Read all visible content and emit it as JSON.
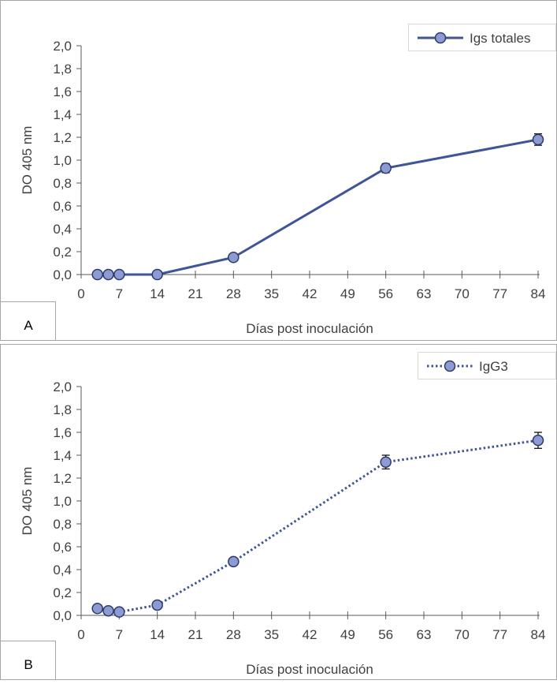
{
  "chart_data": [
    {
      "type": "line",
      "panel_label": "A",
      "x": [
        3,
        5,
        7,
        14,
        28,
        56,
        84
      ],
      "series": [
        {
          "name": "Igs totales",
          "values": [
            0.0,
            0.0,
            0.0,
            0.0,
            0.15,
            0.93,
            1.18
          ],
          "errors": [
            0.0,
            0.0,
            0.0,
            0.0,
            0.01,
            0.04,
            0.05
          ],
          "line_style": "solid"
        }
      ],
      "xlabel": "Días post inoculación",
      "ylabel": "DO 405 nm",
      "xlim": [
        0,
        84
      ],
      "ylim": [
        0,
        2.0
      ],
      "xticks": [
        "0",
        "7",
        "14",
        "21",
        "28",
        "35",
        "42",
        "49",
        "56",
        "63",
        "70",
        "77",
        "84"
      ],
      "yticks": [
        "0,0",
        "0,2",
        "0,4",
        "0,6",
        "0,8",
        "1,0",
        "1,2",
        "1,4",
        "1,6",
        "1,8",
        "2,0"
      ],
      "legend_position": "top-right",
      "grid": false
    },
    {
      "type": "line",
      "panel_label": "B",
      "x": [
        3,
        5,
        7,
        14,
        28,
        56,
        84
      ],
      "series": [
        {
          "name": "IgG3",
          "values": [
            0.06,
            0.04,
            0.03,
            0.09,
            0.47,
            1.34,
            1.53
          ],
          "errors": [
            0.0,
            0.0,
            0.0,
            0.0,
            0.01,
            0.06,
            0.07
          ],
          "line_style": "dotted"
        }
      ],
      "xlabel": "Días post inoculación",
      "ylabel": "DO 405 nm",
      "xlim": [
        0,
        84
      ],
      "ylim": [
        0,
        2.0
      ],
      "xticks": [
        "0",
        "7",
        "14",
        "21",
        "28",
        "35",
        "42",
        "49",
        "56",
        "63",
        "70",
        "77",
        "84"
      ],
      "yticks": [
        "0,0",
        "0,2",
        "0,4",
        "0,6",
        "0,8",
        "1,0",
        "1,2",
        "1,4",
        "1,6",
        "1,8",
        "2,0"
      ],
      "legend_position": "top-right",
      "grid": false
    }
  ],
  "colors": {
    "line": "#3F5597",
    "marker_fill": "#8E9BD3",
    "marker_stroke": "#2B3A6B",
    "axis": "#595959",
    "text": "#404040",
    "frame": "#A6A6A6"
  }
}
